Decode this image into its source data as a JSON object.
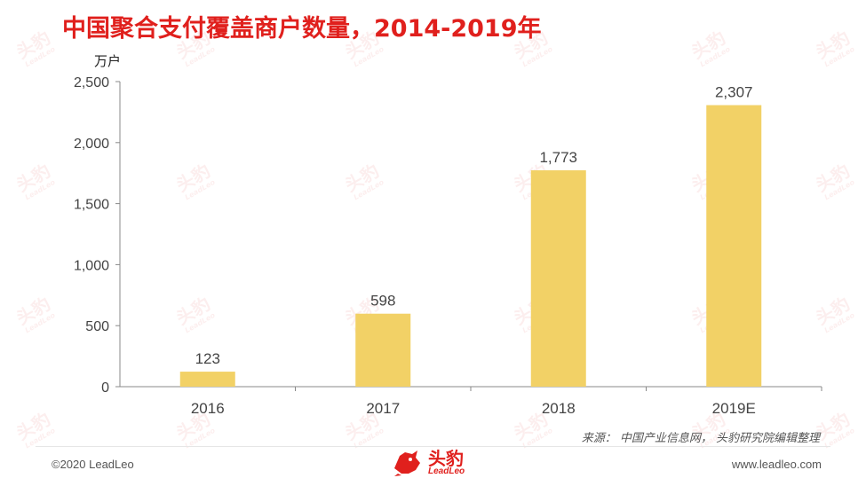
{
  "header": {
    "title": "中国聚合支付覆盖商户数量，2014-2019年",
    "unit": "万户"
  },
  "watermark": {
    "text_cn": "头豹",
    "text_en": "LeadLeo"
  },
  "chart_data": {
    "type": "bar",
    "categories": [
      "2016",
      "2017",
      "2018",
      "2019E"
    ],
    "values": [
      123,
      598,
      1773,
      2307
    ],
    "value_labels": [
      "123",
      "598",
      "1,773",
      "2,307"
    ],
    "ylabel": "万户",
    "ylim": [
      0,
      2500
    ],
    "yticks": [
      0,
      500,
      1000,
      1500,
      2000,
      2500
    ],
    "ytick_labels": [
      "0",
      "500",
      "1,000",
      "1,500",
      "2,000",
      "2,500"
    ],
    "bar_color": "#f2d166",
    "grid": false,
    "legend": "none"
  },
  "footer": {
    "source": "来源：  中国产业信息网， 头豹研究院编辑整理",
    "copyright": "©2020 LeadLeo",
    "website": "www.leadleo.com",
    "logo_cn": "头豹",
    "logo_en": "LeadLeo"
  },
  "colors": {
    "accent": "#e0201d",
    "bar": "#f2d166",
    "axis": "#888888",
    "text": "#333333"
  }
}
